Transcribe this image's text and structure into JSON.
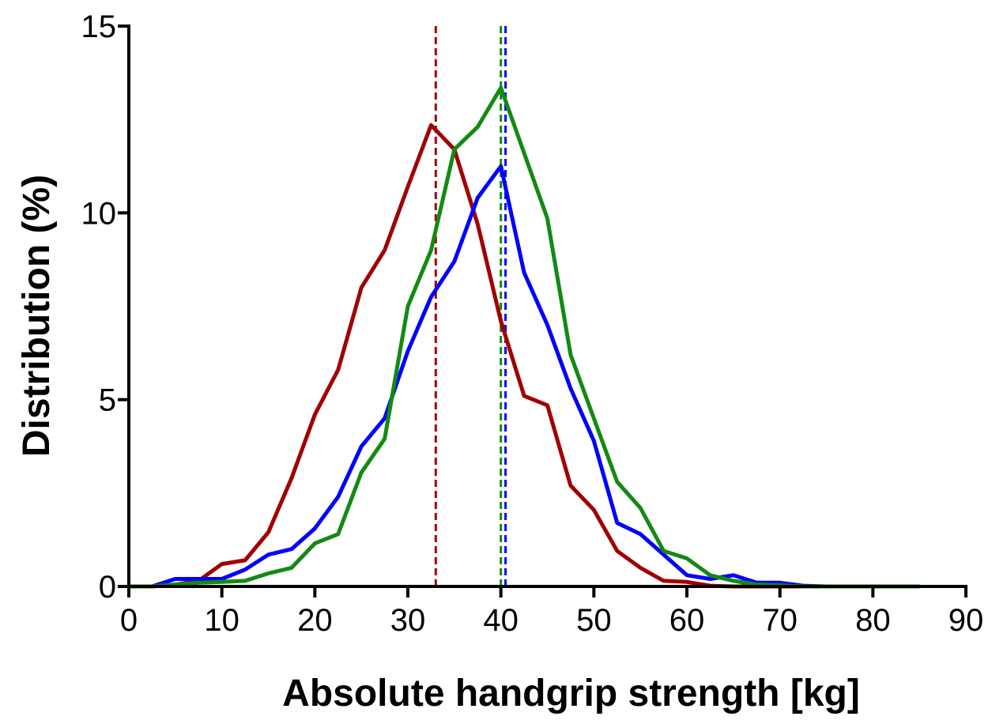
{
  "chart_data": {
    "type": "line",
    "xlabel": "Absolute handgrip strength [kg]",
    "ylabel": "Distribution (%)",
    "xlim": [
      0,
      90
    ],
    "ylim": [
      0,
      15
    ],
    "x_ticks": [
      0,
      10,
      20,
      30,
      40,
      50,
      60,
      70,
      80,
      90
    ],
    "y_ticks": [
      0,
      5,
      10,
      15
    ],
    "grid": false,
    "legend": "none",
    "series": [
      {
        "color": "#a00000",
        "x": [
          0,
          2.5,
          5,
          7.5,
          10,
          12.5,
          15,
          17.5,
          20,
          22.5,
          25,
          27.5,
          30,
          32.5,
          35,
          37.5,
          40,
          42.5,
          45,
          47.5,
          50,
          52.5,
          55,
          57.5,
          60,
          62.5,
          65,
          67.5,
          70,
          72.5,
          75,
          77.5,
          80,
          82.5,
          85
        ],
        "y": [
          0,
          0,
          0.05,
          0.15,
          0.6,
          0.7,
          1.45,
          2.9,
          4.6,
          5.8,
          8.0,
          9.0,
          10.7,
          12.35,
          11.7,
          9.7,
          7.1,
          5.1,
          4.85,
          2.7,
          2.05,
          0.95,
          0.5,
          0.15,
          0.12,
          0.02,
          0,
          0,
          0,
          0,
          0,
          0,
          0,
          0,
          0
        ]
      },
      {
        "color": "#0000ff",
        "x": [
          0,
          2.5,
          5,
          7.5,
          10,
          12.5,
          15,
          17.5,
          20,
          22.5,
          25,
          27.5,
          30,
          32.5,
          35,
          37.5,
          40,
          42.5,
          45,
          47.5,
          50,
          52.5,
          55,
          57.5,
          60,
          62.5,
          65,
          67.5,
          70,
          72.5,
          75,
          77.5,
          80,
          82.5,
          85
        ],
        "y": [
          0,
          0,
          0.2,
          0.2,
          0.2,
          0.45,
          0.85,
          1.0,
          1.55,
          2.4,
          3.75,
          4.5,
          6.3,
          7.75,
          8.7,
          10.4,
          11.25,
          8.4,
          7.0,
          5.3,
          3.9,
          1.7,
          1.4,
          0.85,
          0.3,
          0.2,
          0.3,
          0.1,
          0.1,
          0.02,
          0,
          0,
          0,
          0,
          0
        ]
      },
      {
        "color": "#138a13",
        "x": [
          0,
          2.5,
          5,
          7.5,
          10,
          12.5,
          15,
          17.5,
          20,
          22.5,
          25,
          27.5,
          30,
          32.5,
          35,
          37.5,
          40,
          42.5,
          45,
          47.5,
          50,
          52.5,
          55,
          57.5,
          60,
          62.5,
          65,
          67.5,
          70,
          72.5,
          75,
          77.5,
          80,
          82.5,
          85
        ],
        "y": [
          0,
          0,
          0.05,
          0.1,
          0.12,
          0.15,
          0.35,
          0.5,
          1.15,
          1.4,
          3.05,
          3.95,
          7.5,
          9.0,
          11.7,
          12.3,
          13.35,
          11.6,
          9.85,
          6.2,
          4.5,
          2.8,
          2.1,
          0.95,
          0.75,
          0.3,
          0.15,
          0.05,
          0.03,
          0,
          0,
          0,
          0,
          0,
          0
        ]
      }
    ],
    "reference_lines": [
      {
        "x": 33.0,
        "color": "#a00000",
        "style": "dashed"
      },
      {
        "x": 40.0,
        "color": "#138a13",
        "style": "dashed"
      },
      {
        "x": 40.5,
        "color": "#0000ff",
        "style": "dashed"
      }
    ]
  }
}
